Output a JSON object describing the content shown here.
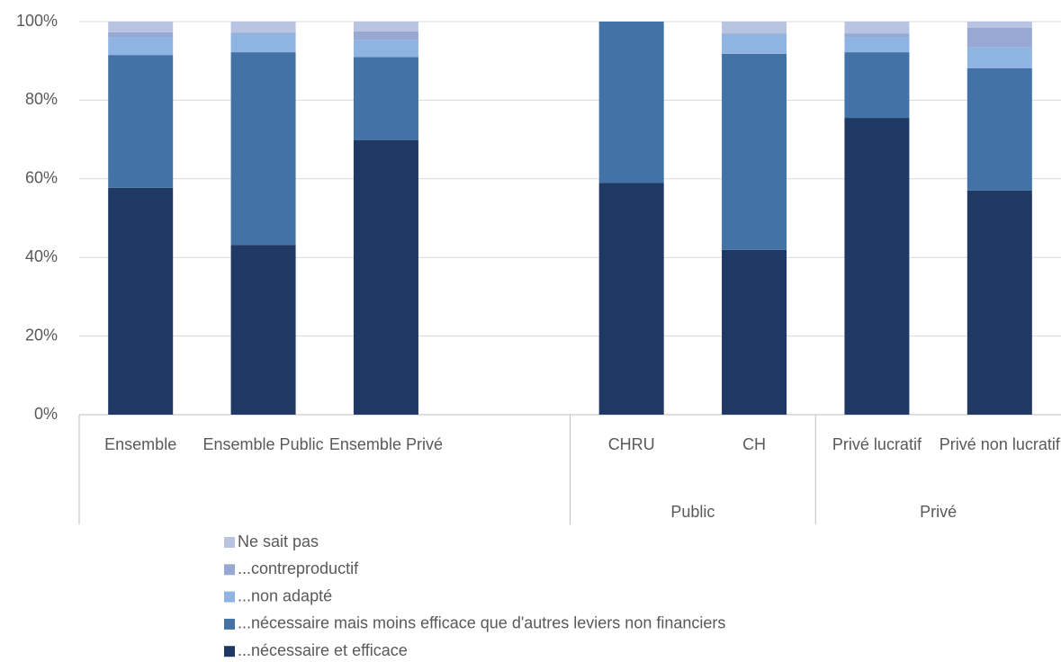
{
  "chart_data": {
    "type": "stacked_bar",
    "categories": [
      "Ensemble",
      "Ensemble Public",
      "Ensemble Privé",
      null,
      "CHRU",
      "CH",
      "Privé lucratif",
      "Privé non lucratif"
    ],
    "groups": [
      null,
      null,
      null,
      null,
      "Public",
      "Public",
      "Privé",
      "Privé"
    ],
    "series": [
      {
        "name": "...nécessaire et efficace",
        "color": "#1f3864",
        "values": [
          57.7,
          43.2,
          69.8,
          null,
          59.0,
          41.9,
          75.5,
          57.0
        ]
      },
      {
        "name": "...nécessaire mais moins efficace que d'autres leviers non financiers",
        "color": "#4372a6",
        "values": [
          33.8,
          49.0,
          21.2,
          null,
          41.0,
          49.9,
          16.7,
          31.1
        ]
      },
      {
        "name": "...non adapté",
        "color": "#8fb4e3",
        "values": [
          4.6,
          4.6,
          4.4,
          null,
          0,
          4.8,
          3.9,
          5.3
        ]
      },
      {
        "name": "...contreproductif",
        "color": "#97a9d2",
        "values": [
          1.2,
          0.4,
          2.1,
          null,
          0,
          0.4,
          0.9,
          5.0
        ]
      },
      {
        "name": "Ne sait pas",
        "color": "#b9c4e2",
        "values": [
          2.7,
          2.8,
          2.5,
          null,
          0,
          3.0,
          3.0,
          1.6
        ]
      }
    ],
    "ylim": [
      0,
      100
    ],
    "yticks": [
      {
        "value": 0,
        "label": "0%"
      },
      {
        "value": 20,
        "label": "20%"
      },
      {
        "value": 40,
        "label": "40%"
      },
      {
        "value": 60,
        "label": "60%"
      },
      {
        "value": 80,
        "label": "80%"
      },
      {
        "value": 100,
        "label": "100%"
      }
    ],
    "grid": true,
    "legend": "bottom"
  }
}
